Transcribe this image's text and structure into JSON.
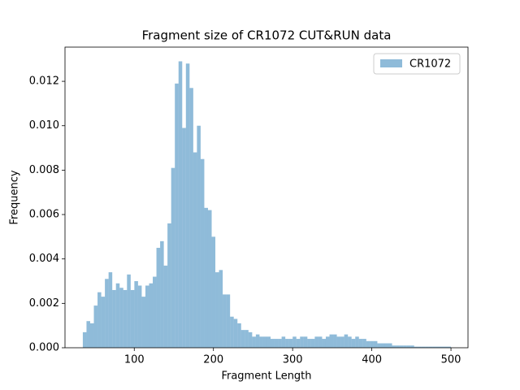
{
  "chart_data": {
    "type": "histogram",
    "title": "Fragment size of CR1072 CUT&RUN data",
    "xlabel": "Fragment Length",
    "ylabel": "Frequency",
    "bins": [
      35,
      39.65,
      44.3,
      48.95,
      53.6,
      58.25,
      62.9,
      67.55,
      72.2,
      76.85,
      81.5,
      86.15,
      90.8,
      95.45,
      100.1,
      104.75,
      109.4,
      114.05,
      118.7,
      123.35,
      128,
      132.65,
      137.3,
      141.95,
      146.6,
      151.25,
      155.9,
      160.55,
      165.2,
      169.85,
      174.5,
      179.15,
      183.8,
      188.45,
      193.1,
      197.75,
      202.4,
      207.05,
      211.7,
      216.35,
      221,
      225.65,
      230.3,
      234.95,
      239.6,
      244.25,
      248.9,
      253.55,
      258.2,
      262.85,
      267.5,
      272.15,
      276.8,
      281.45,
      286.1,
      290.75,
      295.4,
      300.05,
      304.7,
      309.35,
      314,
      318.65,
      323.3,
      327.95,
      332.6,
      337.25,
      341.9,
      346.55,
      351.2,
      355.85,
      360.5,
      365.15,
      369.8,
      374.45,
      379.1,
      383.75,
      388.4,
      393.05,
      397.7,
      402.35,
      407,
      411.65,
      416.3,
      420.95,
      425.6,
      430.25,
      434.9,
      439.55,
      444.2,
      448.85,
      453.5,
      458.15,
      462.8,
      467.45,
      472.1,
      476.75,
      481.4,
      486.05,
      490.7,
      495.35,
      500
    ],
    "series": [
      {
        "name": "CR1072",
        "color": "#1f77b4",
        "alpha": 0.5,
        "values": [
          0.0007,
          0.0012,
          0.0011,
          0.0019,
          0.0025,
          0.0023,
          0.0031,
          0.0034,
          0.0026,
          0.0029,
          0.0027,
          0.0026,
          0.0033,
          0.0026,
          0.003,
          0.0028,
          0.0023,
          0.0028,
          0.0029,
          0.0032,
          0.0045,
          0.0048,
          0.0037,
          0.0056,
          0.0081,
          0.0119,
          0.0129,
          0.0099,
          0.0128,
          0.0117,
          0.0088,
          0.01,
          0.0085,
          0.0063,
          0.0062,
          0.005,
          0.0034,
          0.0035,
          0.0024,
          0.0024,
          0.0014,
          0.0013,
          0.0011,
          0.0008,
          0.0008,
          0.0007,
          0.0005,
          0.0006,
          0.0005,
          0.0005,
          0.0005,
          0.0004,
          0.0004,
          0.0004,
          0.0005,
          0.0004,
          0.0004,
          0.0005,
          0.0004,
          0.0005,
          0.0005,
          0.0004,
          0.0004,
          0.0005,
          0.0005,
          0.0004,
          0.0005,
          0.0006,
          0.0006,
          0.0005,
          0.0005,
          0.0006,
          0.0005,
          0.0004,
          0.0005,
          0.0004,
          0.0004,
          0.0003,
          0.0003,
          0.0003,
          0.0002,
          0.0002,
          0.0002,
          0.0002,
          0.0001,
          0.0001,
          0.0001,
          0.0001,
          0.0001,
          0.0001,
          5e-05,
          5e-05,
          5e-05,
          5e-05,
          5e-05,
          5e-05,
          5e-05,
          5e-05,
          5e-05,
          5e-05
        ]
      }
    ],
    "xlim": [
      12.5,
      521.5
    ],
    "xticks": [
      100,
      200,
      300,
      400,
      500
    ],
    "ylim": [
      0,
      0.01354
    ],
    "yticks": [
      {
        "value": 0,
        "label": "0.000"
      },
      {
        "value": 0.002,
        "label": "0.002"
      },
      {
        "value": 0.004,
        "label": "0.004"
      },
      {
        "value": 0.006,
        "label": "0.006"
      },
      {
        "value": 0.008,
        "label": "0.008"
      },
      {
        "value": 0.01,
        "label": "0.010"
      },
      {
        "value": 0.012,
        "label": "0.012"
      }
    ],
    "legend": "upper right"
  }
}
